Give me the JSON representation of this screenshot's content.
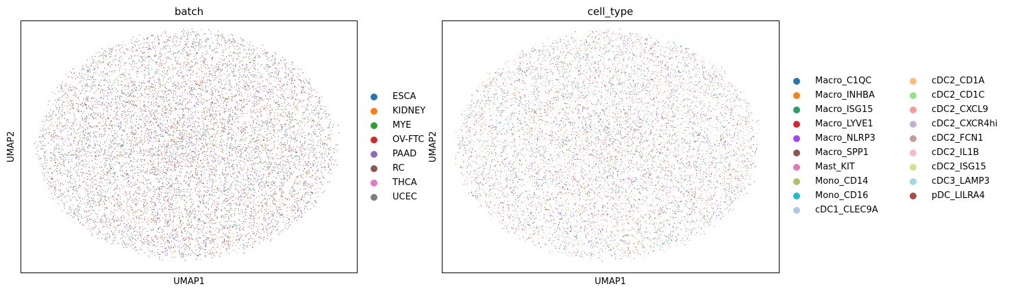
{
  "chart_data": [
    {
      "type": "scatter",
      "title": "batch",
      "xlabel": "UMAP1",
      "ylabel": "UMAP2",
      "grid": false,
      "legend_position": "right",
      "series": [
        {
          "name": "ESCA",
          "color": "#1f77b4"
        },
        {
          "name": "KIDNEY",
          "color": "#ff7f0e"
        },
        {
          "name": "MYE",
          "color": "#2ca02c"
        },
        {
          "name": "OV-FTC",
          "color": "#d62728"
        },
        {
          "name": "PAAD",
          "color": "#9467bd"
        },
        {
          "name": "RC",
          "color": "#8c564b"
        },
        {
          "name": "THCA",
          "color": "#e377c2"
        },
        {
          "name": "UCEC",
          "color": "#7f7f7f"
        }
      ]
    },
    {
      "type": "scatter",
      "title": "cell_type",
      "xlabel": "UMAP1",
      "ylabel": "UMAP2",
      "grid": false,
      "legend_position": "right",
      "series": [
        {
          "name": "Macro_C1QC",
          "color": "#1f77b4"
        },
        {
          "name": "Macro_INHBA",
          "color": "#ff7f0e"
        },
        {
          "name": "Macro_ISG15",
          "color": "#279e68"
        },
        {
          "name": "Macro_LYVE1",
          "color": "#d62728"
        },
        {
          "name": "Macro_NLRP3",
          "color": "#aa40fc"
        },
        {
          "name": "Macro_SPP1",
          "color": "#8c564b"
        },
        {
          "name": "Mast_KIT",
          "color": "#e377c2"
        },
        {
          "name": "Mono_CD14",
          "color": "#b5bd61"
        },
        {
          "name": "Mono_CD16",
          "color": "#17becf"
        },
        {
          "name": "cDC1_CLEC9A",
          "color": "#aec7e8"
        },
        {
          "name": "cDC2_CD1A",
          "color": "#ffbb78"
        },
        {
          "name": "cDC2_CD1C",
          "color": "#98df8a"
        },
        {
          "name": "cDC2_CXCL9",
          "color": "#ff9896"
        },
        {
          "name": "cDC2_CXCR4hi",
          "color": "#c5b0d5"
        },
        {
          "name": "cDC2_FCN1",
          "color": "#c49c94"
        },
        {
          "name": "cDC2_IL1B",
          "color": "#f7b6d2"
        },
        {
          "name": "cDC2_ISG15",
          "color": "#dbdb8d"
        },
        {
          "name": "cDC3_LAMP3",
          "color": "#9edae5"
        },
        {
          "name": "pDC_LILRA4",
          "color": "#ad494a"
        }
      ]
    }
  ]
}
